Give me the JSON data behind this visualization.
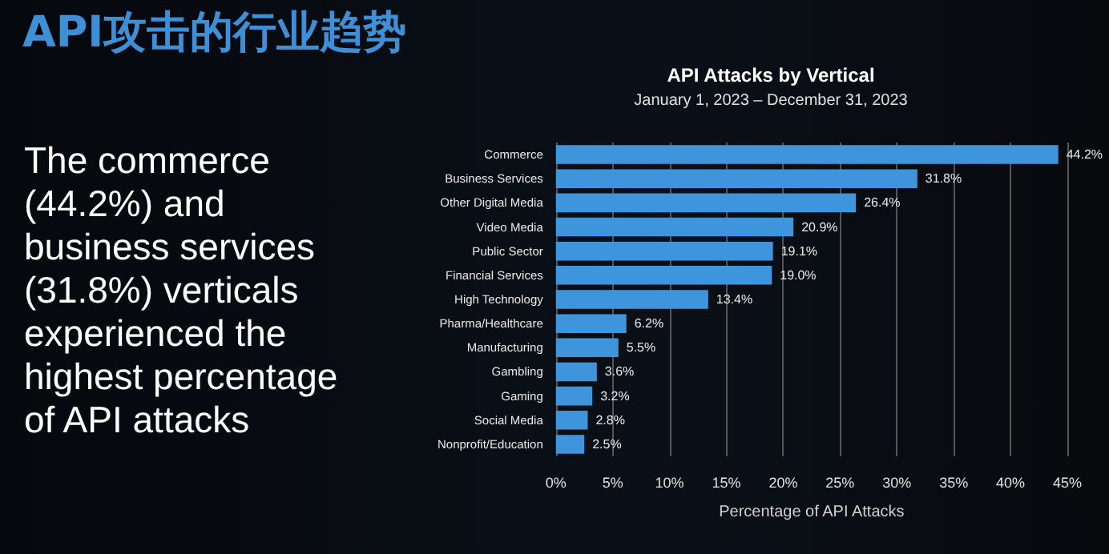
{
  "chart_data": {
    "type": "bar",
    "orientation": "horizontal",
    "title": "API Attacks by Vertical",
    "subtitle": "January 1, 2023 – December 31, 2023",
    "xlabel": "Percentage of API Attacks",
    "categories": [
      "Commerce",
      "Business Services",
      "Other Digital Media",
      "Video Media",
      "Public Sector",
      "Financial Services",
      "High Technology",
      "Pharma/Healthcare",
      "Manufacturing",
      "Gambling",
      "Gaming",
      "Social Media",
      "Nonprofit/Education"
    ],
    "values": [
      44.2,
      31.8,
      26.4,
      20.9,
      19.1,
      19.0,
      13.4,
      6.2,
      5.5,
      3.6,
      3.2,
      2.8,
      2.5
    ],
    "value_labels": [
      "44.2%",
      "31.8%",
      "26.4%",
      "20.9%",
      "19.1%",
      "19.0%",
      "13.4%",
      "6.2%",
      "5.5%",
      "3.6%",
      "3.2%",
      "2.8%",
      "2.5%"
    ],
    "color": "#3f95dc",
    "xlim": [
      0,
      45
    ],
    "xticks": [
      {
        "value": 0,
        "label": "0%"
      },
      {
        "value": 5,
        "label": "5%"
      },
      {
        "value": 10,
        "label": "10%"
      },
      {
        "value": 15,
        "label": "15%"
      },
      {
        "value": 20,
        "label": "20%"
      },
      {
        "value": 25,
        "label": "25%"
      },
      {
        "value": 30,
        "label": "30%"
      },
      {
        "value": 35,
        "label": "35%"
      },
      {
        "value": 40,
        "label": "40%"
      },
      {
        "value": 45,
        "label": "45%"
      }
    ],
    "grid": "x",
    "annotations": [
      "API攻击的行业趋势",
      "The commerce (44.2%) and business services (31.8%) verticals experienced the highest percentage of API attacks"
    ]
  }
}
